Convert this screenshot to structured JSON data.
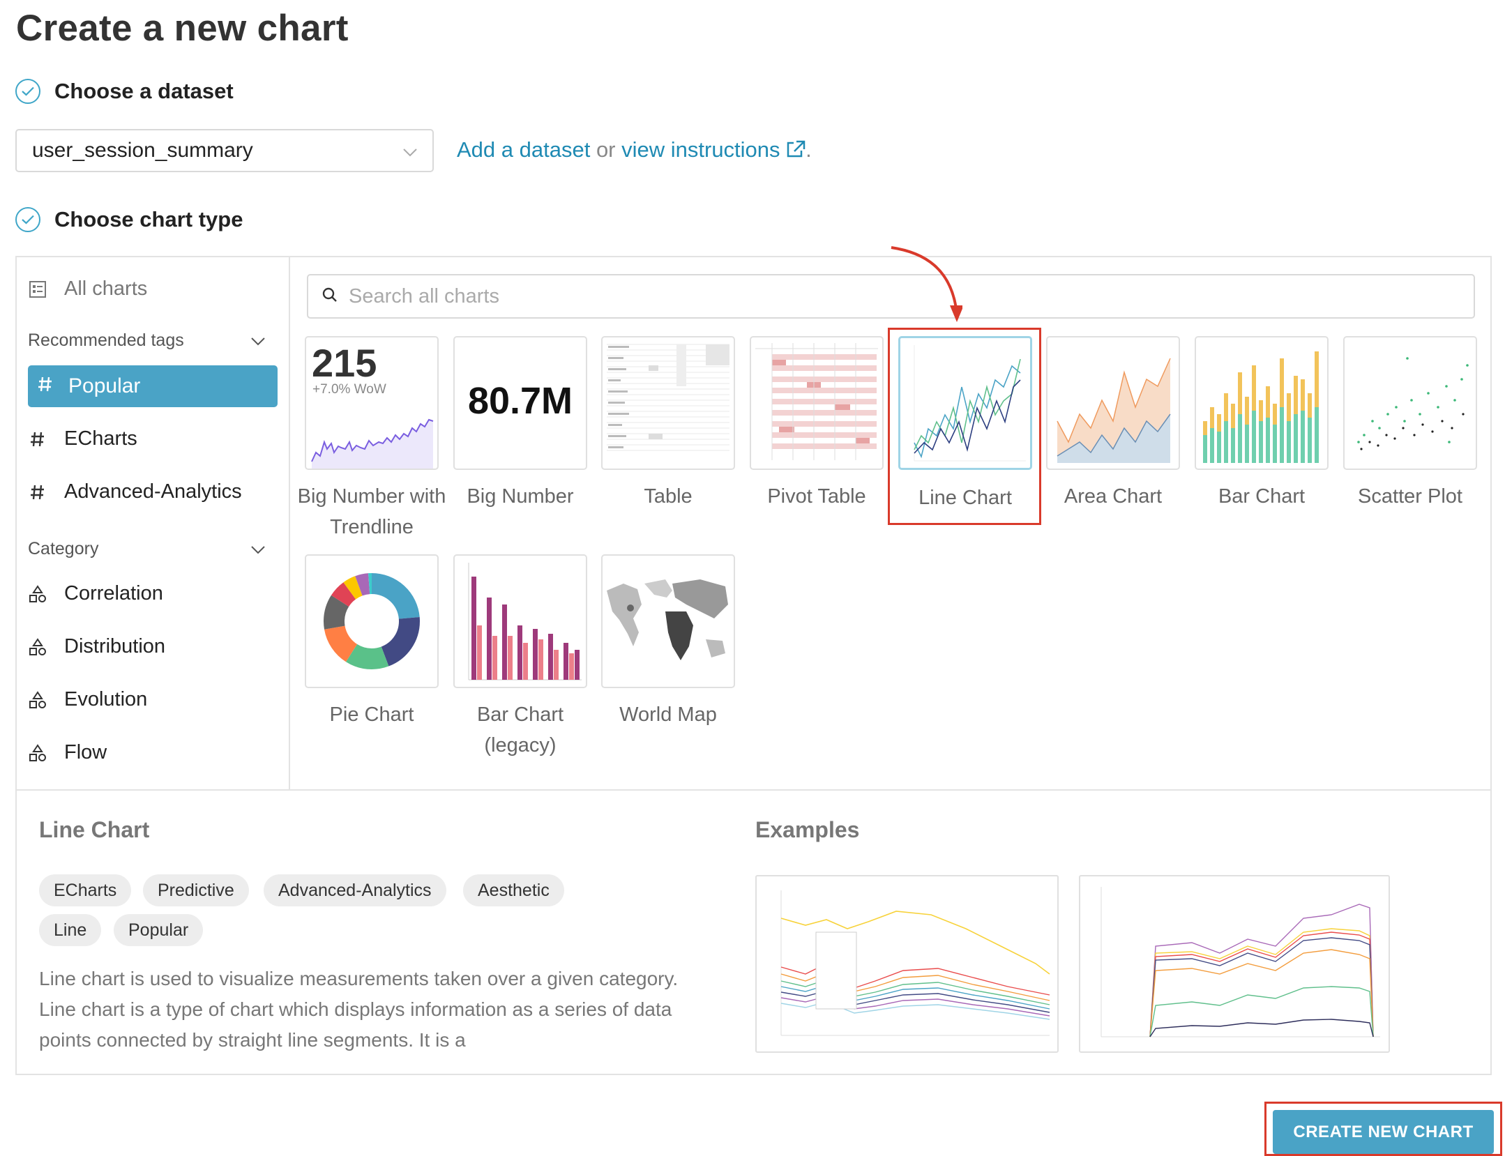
{
  "page": {
    "title": "Create a new chart"
  },
  "steps": {
    "dataset_label": "Choose a dataset",
    "chart_type_label": "Choose chart type"
  },
  "dataset": {
    "selected": "user_session_summary",
    "add_link": "Add a dataset",
    "or_text": " or ",
    "instructions_link": "view instructions",
    "trailing": "."
  },
  "sidebar": {
    "all_charts": "All charts",
    "recommended_header": "Recommended tags",
    "tags": [
      "Popular",
      "ECharts",
      "Advanced-Analytics"
    ],
    "category_header": "Category",
    "categories": [
      "Correlation",
      "Distribution",
      "Evolution",
      "Flow"
    ],
    "selected_tag": "Popular"
  },
  "search": {
    "placeholder": "Search all charts"
  },
  "charts": [
    {
      "label": "Big Number with Trendline",
      "thumb_number": "215",
      "thumb_sub": "+7.0% WoW"
    },
    {
      "label": "Big Number",
      "thumb_number": "80.7M"
    },
    {
      "label": "Table"
    },
    {
      "label": "Pivot Table"
    },
    {
      "label": "Line Chart",
      "selected": true
    },
    {
      "label": "Area Chart"
    },
    {
      "label": "Bar Chart"
    },
    {
      "label": "Scatter Plot"
    },
    {
      "label": "Pie Chart"
    },
    {
      "label": "Bar Chart (legacy)"
    },
    {
      "label": "World Map"
    }
  ],
  "detail": {
    "title": "Line Chart",
    "tags": [
      "ECharts",
      "Predictive",
      "Advanced-Analytics",
      "Aesthetic",
      "Line",
      "Popular"
    ],
    "description": "Line chart is used to visualize measurements taken over a given category. Line chart is a type of chart which displays information as a series of data points connected by straight line segments. It is a",
    "examples_title": "Examples"
  },
  "actions": {
    "create": "CREATE NEW CHART"
  },
  "colors": {
    "accent": "#4aa3c6",
    "highlight": "#d93a2b",
    "link": "#1f8ab3"
  }
}
